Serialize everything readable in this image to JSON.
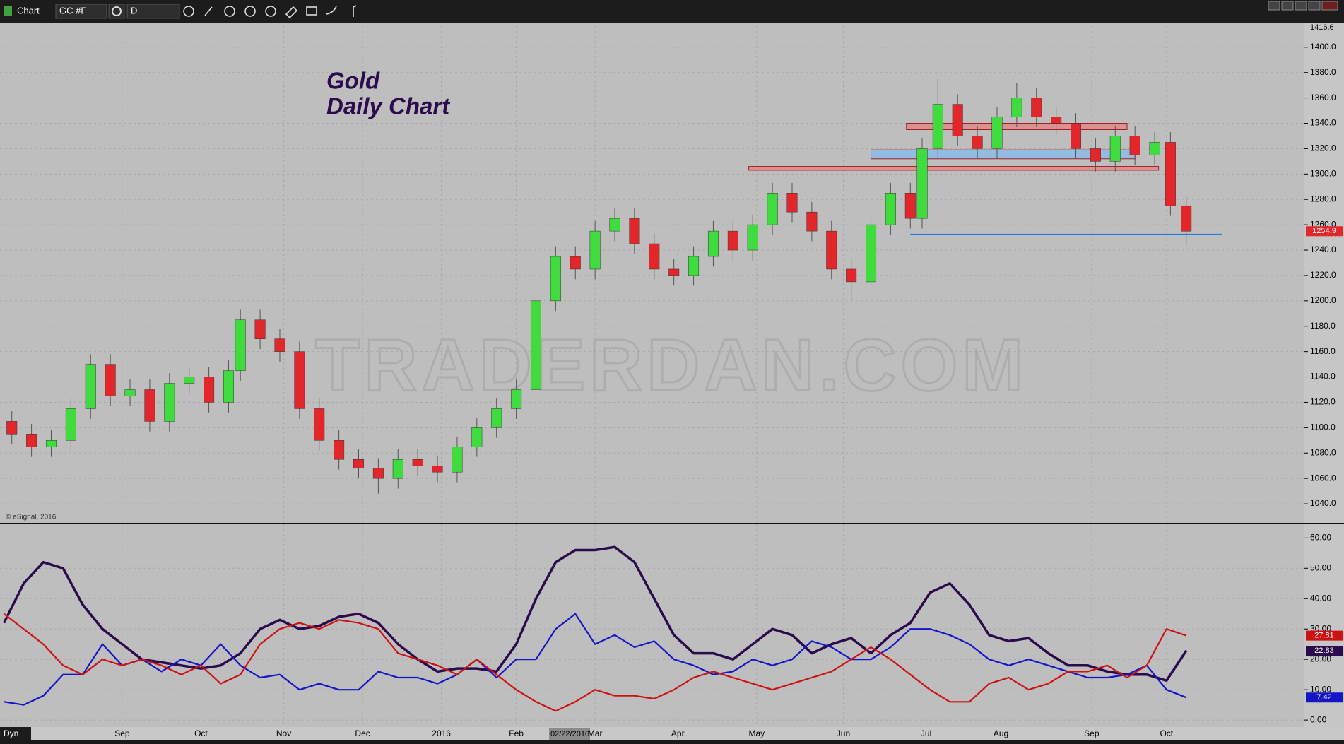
{
  "ui": {
    "toolbar_label": "Chart",
    "symbol": "GC #F",
    "interval": "D",
    "mode": "Dyn",
    "copyright": "© eSignal, 2016",
    "watermark": "TRADERDAN.COM",
    "cursor_date": "02/22/2016"
  },
  "chart_data": [
    {
      "type": "candlestick",
      "title": "Gold",
      "subtitle": "Daily Chart",
      "x": [
        2,
        7,
        12,
        17,
        22,
        27,
        32,
        37,
        42,
        47,
        52,
        57,
        60,
        65,
        70,
        75,
        80,
        85,
        90,
        95,
        100,
        105,
        110,
        115,
        120,
        125,
        130,
        135,
        140,
        145,
        150,
        155,
        160,
        165,
        170,
        175,
        180,
        185,
        190,
        195,
        200,
        205,
        210,
        215,
        220,
        225,
        230,
        233,
        237,
        242,
        247,
        252,
        257,
        262,
        267,
        272,
        277,
        282,
        287,
        292,
        296,
        300
      ],
      "open": [
        1105,
        1095,
        1085,
        1090,
        1115,
        1150,
        1125,
        1130,
        1105,
        1135,
        1140,
        1120,
        1145,
        1185,
        1170,
        1160,
        1115,
        1090,
        1075,
        1068,
        1060,
        1075,
        1070,
        1065,
        1085,
        1100,
        1115,
        1130,
        1200,
        1235,
        1225,
        1255,
        1265,
        1245,
        1225,
        1220,
        1235,
        1255,
        1240,
        1260,
        1285,
        1270,
        1255,
        1225,
        1215,
        1260,
        1285,
        1265,
        1320,
        1355,
        1330,
        1320,
        1345,
        1360,
        1345,
        1340,
        1320,
        1310,
        1330,
        1315,
        1325,
        1275
      ],
      "high": [
        1113,
        1103,
        1098,
        1123,
        1158,
        1158,
        1138,
        1138,
        1143,
        1148,
        1148,
        1153,
        1193,
        1193,
        1178,
        1168,
        1123,
        1098,
        1083,
        1076,
        1083,
        1083,
        1078,
        1093,
        1108,
        1123,
        1138,
        1208,
        1243,
        1243,
        1263,
        1273,
        1273,
        1253,
        1233,
        1243,
        1263,
        1263,
        1268,
        1293,
        1293,
        1278,
        1263,
        1233,
        1268,
        1293,
        1293,
        1328,
        1375,
        1363,
        1338,
        1353,
        1372,
        1368,
        1353,
        1348,
        1328,
        1338,
        1338,
        1333,
        1333,
        1283
      ],
      "low": [
        1087,
        1077,
        1077,
        1082,
        1107,
        1117,
        1117,
        1097,
        1097,
        1127,
        1112,
        1112,
        1137,
        1162,
        1152,
        1107,
        1082,
        1067,
        1060,
        1048,
        1052,
        1062,
        1057,
        1057,
        1077,
        1092,
        1107,
        1122,
        1192,
        1217,
        1217,
        1247,
        1237,
        1217,
        1212,
        1212,
        1227,
        1232,
        1232,
        1252,
        1262,
        1247,
        1217,
        1200,
        1207,
        1252,
        1257,
        1257,
        1312,
        1322,
        1312,
        1312,
        1337,
        1337,
        1332,
        1312,
        1302,
        1302,
        1307,
        1307,
        1267,
        1244
      ],
      "close": [
        1095,
        1085,
        1090,
        1115,
        1150,
        1125,
        1130,
        1105,
        1135,
        1140,
        1120,
        1145,
        1185,
        1170,
        1160,
        1115,
        1090,
        1075,
        1068,
        1060,
        1075,
        1070,
        1065,
        1085,
        1100,
        1115,
        1130,
        1200,
        1235,
        1225,
        1255,
        1265,
        1245,
        1225,
        1220,
        1235,
        1255,
        1240,
        1260,
        1285,
        1270,
        1255,
        1225,
        1215,
        1260,
        1285,
        1265,
        1320,
        1355,
        1330,
        1320,
        1345,
        1360,
        1345,
        1340,
        1320,
        1310,
        1330,
        1315,
        1325,
        1275,
        1254.9
      ],
      "up_color": "#3fdc3f",
      "down_color": "#e3262a",
      "zones": [
        {
          "x": [
            189,
            293
          ],
          "y": [
            1303,
            1306
          ],
          "color": "#e08a8a"
        },
        {
          "x": [
            220,
            287
          ],
          "y": [
            1312,
            1319
          ],
          "color": "#8dbbe8"
        },
        {
          "x": [
            229,
            285
          ],
          "y": [
            1335,
            1340
          ],
          "color": "#e08a8a"
        }
      ],
      "level_line": {
        "x": [
          230,
          309
        ],
        "y": 1252.5,
        "color": "#1e7fe0"
      },
      "xlim": [
        -1,
        330
      ],
      "ylim": [
        1025,
        1416.6
      ],
      "xticks": [
        {
          "value": 30,
          "label": "Sep"
        },
        {
          "value": 50,
          "label": "Oct"
        },
        {
          "value": 71,
          "label": "Nov"
        },
        {
          "value": 91,
          "label": "Dec"
        },
        {
          "value": 111,
          "label": "2016"
        },
        {
          "value": 130,
          "label": "Feb"
        },
        {
          "value": 150,
          "label": "Mar"
        },
        {
          "value": 171,
          "label": "Apr"
        },
        {
          "value": 191,
          "label": "May"
        },
        {
          "value": 213,
          "label": "Jun"
        },
        {
          "value": 234,
          "label": "Jul"
        },
        {
          "value": 253,
          "label": "Aug"
        },
        {
          "value": 276,
          "label": "Sep"
        },
        {
          "value": 295,
          "label": "Oct"
        }
      ],
      "yticks": [
        {
          "value": 1040,
          "label": "1040.0"
        },
        {
          "value": 1060,
          "label": "1060.0"
        },
        {
          "value": 1080,
          "label": "1080.0"
        },
        {
          "value": 1100,
          "label": "1100.0"
        },
        {
          "value": 1120,
          "label": "1120.0"
        },
        {
          "value": 1140,
          "label": "1140.0"
        },
        {
          "value": 1160,
          "label": "1160.0"
        },
        {
          "value": 1180,
          "label": "1180.0"
        },
        {
          "value": 1200,
          "label": "1200.0"
        },
        {
          "value": 1220,
          "label": "1220.0"
        },
        {
          "value": 1240,
          "label": "1240.0"
        },
        {
          "value": 1260,
          "label": "1260.0"
        },
        {
          "value": 1280,
          "label": "1280.0"
        },
        {
          "value": 1300,
          "label": "1300.0"
        },
        {
          "value": 1320,
          "label": "1320.0"
        },
        {
          "value": 1340,
          "label": "1340.0"
        },
        {
          "value": 1360,
          "label": "1360.0"
        },
        {
          "value": 1380,
          "label": "1380.0"
        },
        {
          "value": 1400,
          "label": "1400.0"
        }
      ],
      "grid": true
    },
    {
      "type": "line",
      "x": [
        0,
        5,
        10,
        15,
        20,
        25,
        30,
        35,
        40,
        45,
        50,
        55,
        60,
        65,
        70,
        75,
        80,
        85,
        90,
        95,
        100,
        105,
        110,
        115,
        120,
        125,
        130,
        135,
        140,
        145,
        150,
        155,
        160,
        165,
        170,
        175,
        180,
        185,
        190,
        195,
        200,
        205,
        210,
        215,
        220,
        225,
        230,
        235,
        240,
        245,
        250,
        255,
        260,
        265,
        270,
        275,
        280,
        285,
        290,
        295,
        300
      ],
      "series": [
        {
          "color": "#2b0b4d",
          "width": 3.5,
          "values": [
            32,
            45,
            52,
            50,
            38,
            30,
            25,
            20,
            19,
            18,
            17,
            18,
            22,
            30,
            33,
            30,
            31,
            34,
            35,
            32,
            25,
            20,
            16,
            17,
            17,
            16,
            25,
            40,
            52,
            56,
            56,
            57,
            52,
            40,
            28,
            22,
            22,
            20,
            25,
            30,
            28,
            22,
            25,
            27,
            22,
            28,
            32,
            42,
            45,
            38,
            28,
            26,
            27,
            22,
            18,
            18,
            16,
            15,
            15,
            13,
            22.83
          ]
        },
        {
          "color": "#1515c8",
          "width": 2.2,
          "values": [
            6,
            5,
            8,
            15,
            15,
            25,
            18,
            20,
            16,
            20,
            18,
            25,
            18,
            14,
            15,
            10,
            12,
            10,
            10,
            16,
            14,
            14,
            12,
            15,
            20,
            14,
            20,
            20,
            30,
            35,
            25,
            28,
            24,
            26,
            20,
            18,
            15,
            16,
            20,
            18,
            20,
            26,
            24,
            20,
            20,
            24,
            30,
            30,
            28,
            25,
            20,
            18,
            20,
            18,
            16,
            14,
            14,
            15,
            18,
            10,
            7.42
          ]
        },
        {
          "color": "#cc1212",
          "width": 2.2,
          "values": [
            35,
            30,
            25,
            18,
            15,
            20,
            18,
            20,
            18,
            15,
            18,
            12,
            15,
            25,
            30,
            32,
            30,
            33,
            32,
            30,
            22,
            20,
            18,
            15,
            20,
            15,
            10,
            6,
            3,
            6,
            10,
            8,
            8,
            7,
            10,
            14,
            16,
            14,
            12,
            10,
            12,
            14,
            16,
            20,
            24,
            20,
            15,
            10,
            6,
            6,
            12,
            14,
            10,
            12,
            16,
            16,
            18,
            14,
            18,
            30,
            27.81
          ]
        }
      ],
      "xlim": [
        -1,
        330
      ],
      "ylim": [
        -2.3,
        64.5
      ],
      "yticks": [
        {
          "value": 0,
          "label": "0.00"
        },
        {
          "value": 10,
          "label": "10.00"
        },
        {
          "value": 20,
          "label": "20.00"
        },
        {
          "value": 30,
          "label": "30.00"
        },
        {
          "value": 40,
          "label": "40.00"
        },
        {
          "value": 50,
          "label": "50.00"
        },
        {
          "value": 60,
          "label": "60.00"
        }
      ],
      "grid": true
    }
  ]
}
